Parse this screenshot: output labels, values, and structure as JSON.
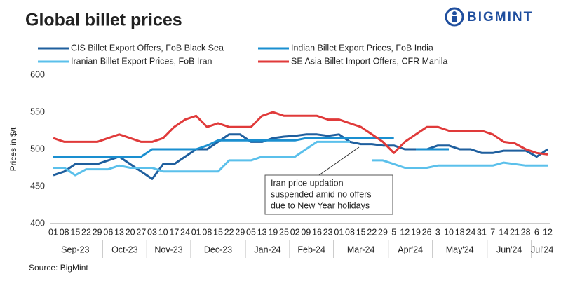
{
  "chart_data": {
    "type": "line",
    "title": "Global billet prices",
    "logo": "BIGMINT",
    "y_label": "Prices in $/t",
    "source": "Source: BigMint",
    "categories": [
      "01",
      "08",
      "15",
      "22",
      "29",
      "06",
      "13",
      "20",
      "27",
      "03",
      "10",
      "17",
      "24",
      "01",
      "08",
      "15",
      "22",
      "29",
      "05",
      "13",
      "19",
      "25",
      "02",
      "09",
      "16",
      "23",
      "01",
      "08",
      "15",
      "22",
      "29",
      "5",
      "12",
      "19",
      "26",
      "3",
      "10",
      "18",
      "24",
      "31",
      "7",
      "14",
      "21",
      "28",
      "6",
      "12"
    ],
    "month_groups": [
      {
        "label": "Sep-23",
        "count": 5
      },
      {
        "label": "Oct-23",
        "count": 4
      },
      {
        "label": "Nov-23",
        "count": 4
      },
      {
        "label": "Dec-23",
        "count": 5
      },
      {
        "label": "Jan-24",
        "count": 4
      },
      {
        "label": "Feb-24",
        "count": 4
      },
      {
        "label": "Mar-24",
        "count": 5
      },
      {
        "label": "Apr'24",
        "count": 4
      },
      {
        "label": "May'24",
        "count": 5
      },
      {
        "label": "Jun'24",
        "count": 4
      },
      {
        "label": "Jul'24",
        "count": 2
      }
    ],
    "series": [
      {
        "name": "CIS Billet Export Offers, FoB Black Sea",
        "color": "#1f5f9e",
        "values": [
          465,
          470,
          480,
          480,
          480,
          485,
          490,
          480,
          470,
          460,
          480,
          480,
          490,
          500,
          500,
          510,
          520,
          520,
          510,
          510,
          515,
          517,
          518,
          520,
          520,
          518,
          520,
          510,
          507,
          507,
          505,
          505,
          500,
          500,
          500,
          505,
          505,
          500,
          500,
          495,
          495,
          498,
          498,
          498,
          490,
          500
        ]
      },
      {
        "name": "Indian Billet Export Prices, FoB India",
        "color": "#1a8fd0",
        "values": [
          490,
          490,
          490,
          490,
          490,
          490,
          490,
          490,
          490,
          500,
          500,
          500,
          500,
          500,
          505,
          512,
          512,
          512,
          512,
          512,
          512,
          512,
          512,
          515,
          515,
          515,
          515,
          515,
          515,
          515,
          515,
          515,
          null,
          500,
          500,
          500,
          500,
          null,
          null,
          null,
          null,
          null,
          null,
          null,
          null,
          null
        ]
      },
      {
        "name": "Iranian Billet Export Prices, FoB Iran",
        "color": "#5bc0eb",
        "values": [
          475,
          475,
          465,
          473,
          473,
          473,
          478,
          475,
          475,
          475,
          470,
          470,
          470,
          470,
          470,
          470,
          485,
          485,
          485,
          490,
          490,
          490,
          490,
          500,
          510,
          510,
          510,
          510,
          null,
          485,
          485,
          480,
          475,
          475,
          475,
          478,
          478,
          478,
          478,
          478,
          478,
          482,
          480,
          478,
          478,
          478
        ]
      },
      {
        "name": "SE Asia Billet Import Offers, CFR Manila",
        "color": "#e03a3a",
        "values": [
          515,
          510,
          510,
          510,
          510,
          515,
          520,
          515,
          510,
          510,
          515,
          530,
          540,
          545,
          530,
          535,
          530,
          530,
          530,
          545,
          550,
          545,
          545,
          545,
          545,
          540,
          540,
          535,
          530,
          520,
          510,
          495,
          510,
          520,
          530,
          530,
          525,
          525,
          525,
          525,
          520,
          510,
          508,
          500,
          495,
          493
        ]
      }
    ],
    "ylim": [
      400,
      600
    ],
    "yticks": [
      400,
      450,
      500,
      550,
      600
    ],
    "grid": false,
    "annotation": {
      "lines": [
        "Iran price updation",
        "suspended amid no offers",
        "due to New Year holidays"
      ]
    }
  }
}
